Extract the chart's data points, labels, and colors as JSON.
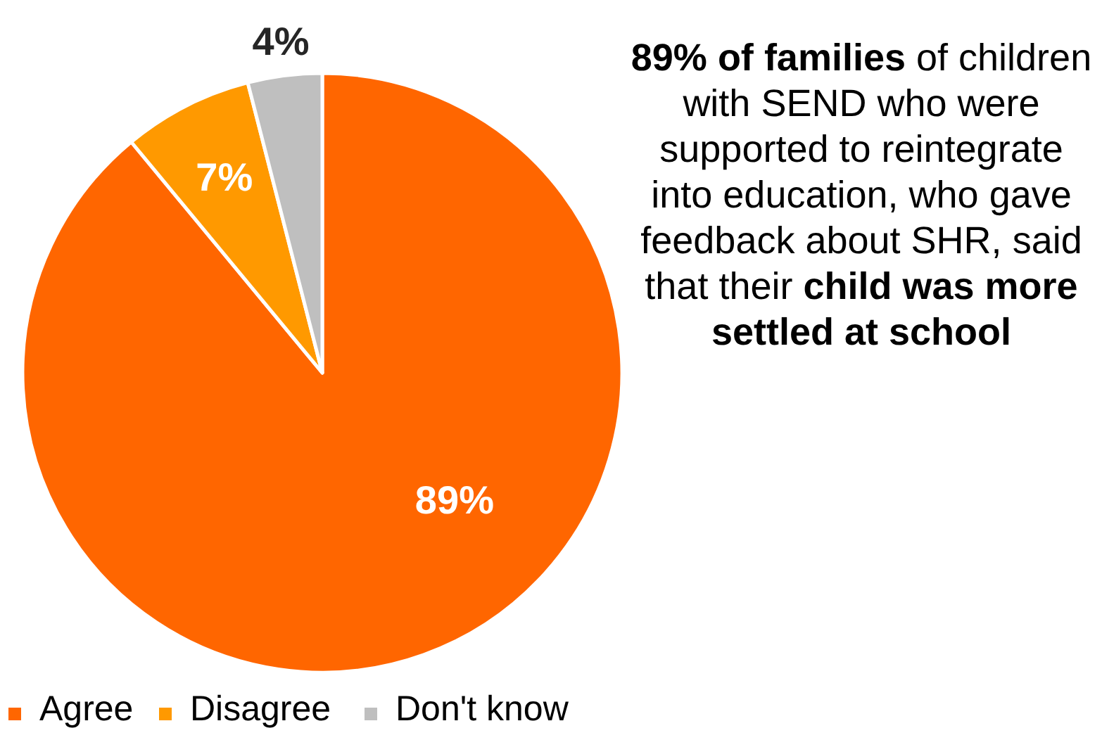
{
  "chart_data": {
    "type": "pie",
    "categories": [
      "Agree",
      "Disagree",
      "Don't know"
    ],
    "values": [
      89,
      7,
      4
    ],
    "colors": [
      "#ff6600",
      "#ff9900",
      "#bfbfbf"
    ],
    "value_labels": [
      "89%",
      "7%",
      "4%"
    ],
    "legend": "bottom left",
    "annotations": [
      "89% of families",
      " of children with SEND who were supported to reintegrate into education, who gave feedback about SHR, said that their ",
      "child was more settled at school"
    ]
  }
}
